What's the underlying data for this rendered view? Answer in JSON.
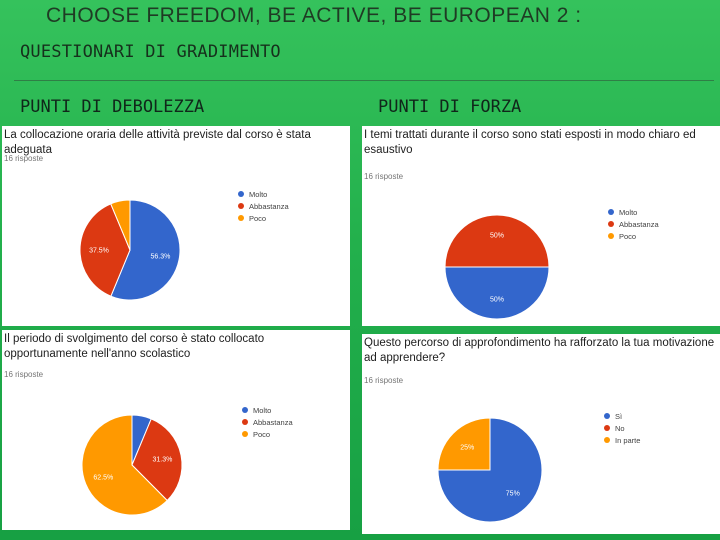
{
  "slide": {
    "title": "CHOOSE FREEDOM, BE ACTIVE, BE EUROPEAN 2 :",
    "subtitle": "QUESTIONARI DI GRADIMENTO",
    "left_heading": "PUNTI DI DEBOLEZZA",
    "right_heading": "PUNTI DI FORZA"
  },
  "colors": {
    "blue": "#3366cc",
    "red": "#dc3912",
    "orange": "#ff9900"
  },
  "chart_data": [
    {
      "type": "pie",
      "title": "La collocazione oraria delle attività previste dal corso è stata adeguata",
      "responses": "16 risposte",
      "categories": [
        "Molto",
        "Abbastanza",
        "Poco"
      ],
      "values": [
        56.3,
        37.5,
        6.3
      ],
      "labels": [
        "56.3%",
        "37.5%",
        ""
      ],
      "legend": "right"
    },
    {
      "type": "pie",
      "title": "I temi trattati durante il corso sono stati esposti in modo chiaro ed esaustivo",
      "responses": "16 risposte",
      "categories": [
        "Molto",
        "Abbastanza",
        "Poco"
      ],
      "values": [
        50,
        50,
        0
      ],
      "labels": [
        "50%",
        "50%",
        ""
      ],
      "legend": "right"
    },
    {
      "type": "pie",
      "title": "Il periodo di svolgimento del corso è stato collocato opportunamente nell'anno scolastico",
      "responses": "16 risposte",
      "categories": [
        "Molto",
        "Abbastanza",
        "Poco"
      ],
      "values": [
        6.3,
        31.3,
        62.5
      ],
      "labels": [
        "",
        "31.3%",
        "62.5%"
      ],
      "legend": "right"
    },
    {
      "type": "pie",
      "title": "Questo percorso di approfondimento ha rafforzato la tua motivazione ad apprendere?",
      "responses": "16 risposte",
      "categories": [
        "Sì",
        "No",
        "In parte"
      ],
      "values": [
        75,
        0,
        25
      ],
      "labels": [
        "75%",
        "",
        "25%"
      ],
      "legend": "right"
    }
  ]
}
